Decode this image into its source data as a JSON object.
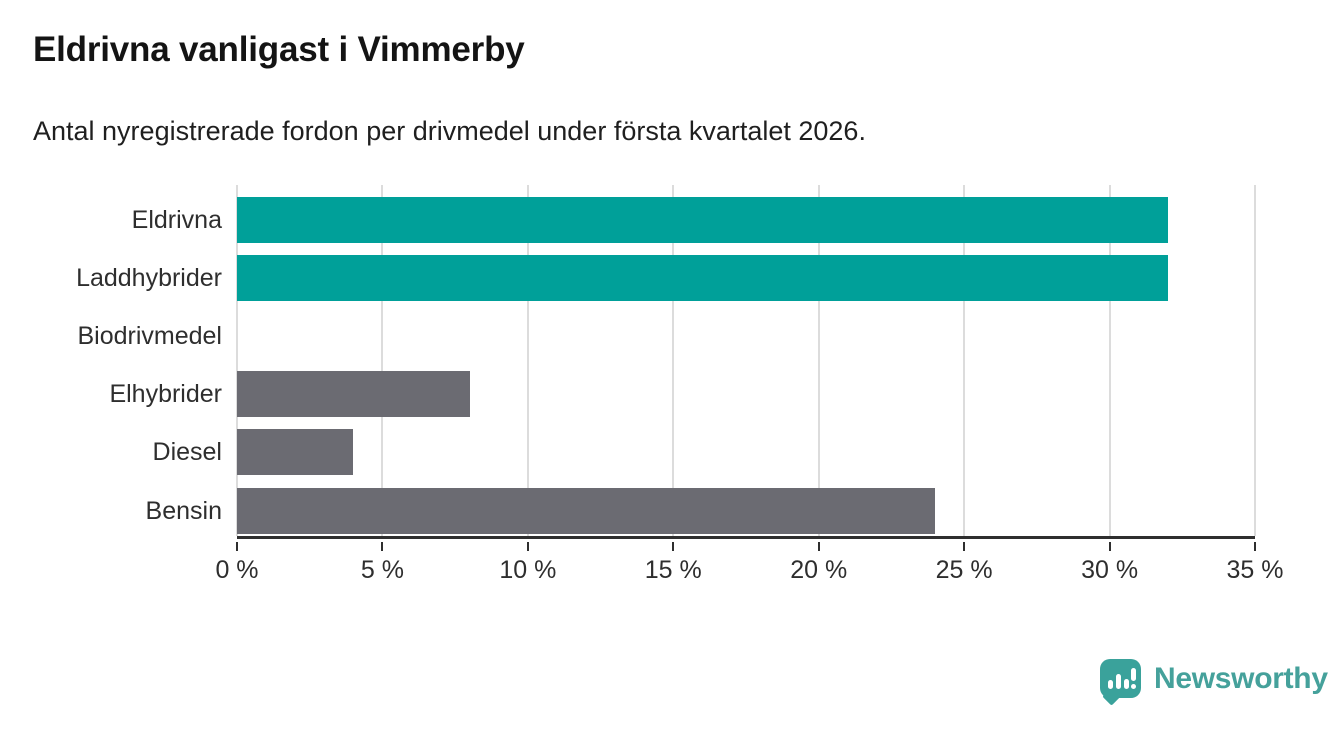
{
  "header": {
    "title": "Eldrivna vanligast i Vimmerby",
    "subtitle": "Antal nyregistrerade fordon per drivmedel under första kvartalet 2026."
  },
  "chart_data": {
    "type": "bar",
    "orientation": "horizontal",
    "title": "Eldrivna vanligast i Vimmerby",
    "subtitle": "Antal nyregistrerade fordon per drivmedel under första kvartalet 2026.",
    "categories": [
      "Eldrivna",
      "Laddhybrider",
      "Biodrivmedel",
      "Elhybrider",
      "Diesel",
      "Bensin"
    ],
    "values": [
      32,
      32,
      0,
      8,
      4,
      24
    ],
    "unit": "%",
    "xlabel": "",
    "ylabel": "",
    "xlim": [
      0,
      35
    ],
    "tick_step": 5,
    "x_ticks": [
      "0 %",
      "5 %",
      "10 %",
      "15 %",
      "20 %",
      "25 %",
      "30 %",
      "35 %"
    ],
    "grid": true,
    "legend": "none",
    "bar_colors": [
      "#00a099",
      "#00a099",
      "#6b6b72",
      "#6b6b72",
      "#6b6b72",
      "#6b6b72"
    ],
    "highlight_color": "#00a099",
    "default_color": "#6b6b72",
    "gridline_color": "#dcdcdc",
    "axis_color": "#2f2f2f"
  },
  "footer": {
    "brand": "Newsworthy",
    "logo_icon": "newsworthy-speech-bubble-chart-icon",
    "brand_color": "#3aa29b"
  }
}
